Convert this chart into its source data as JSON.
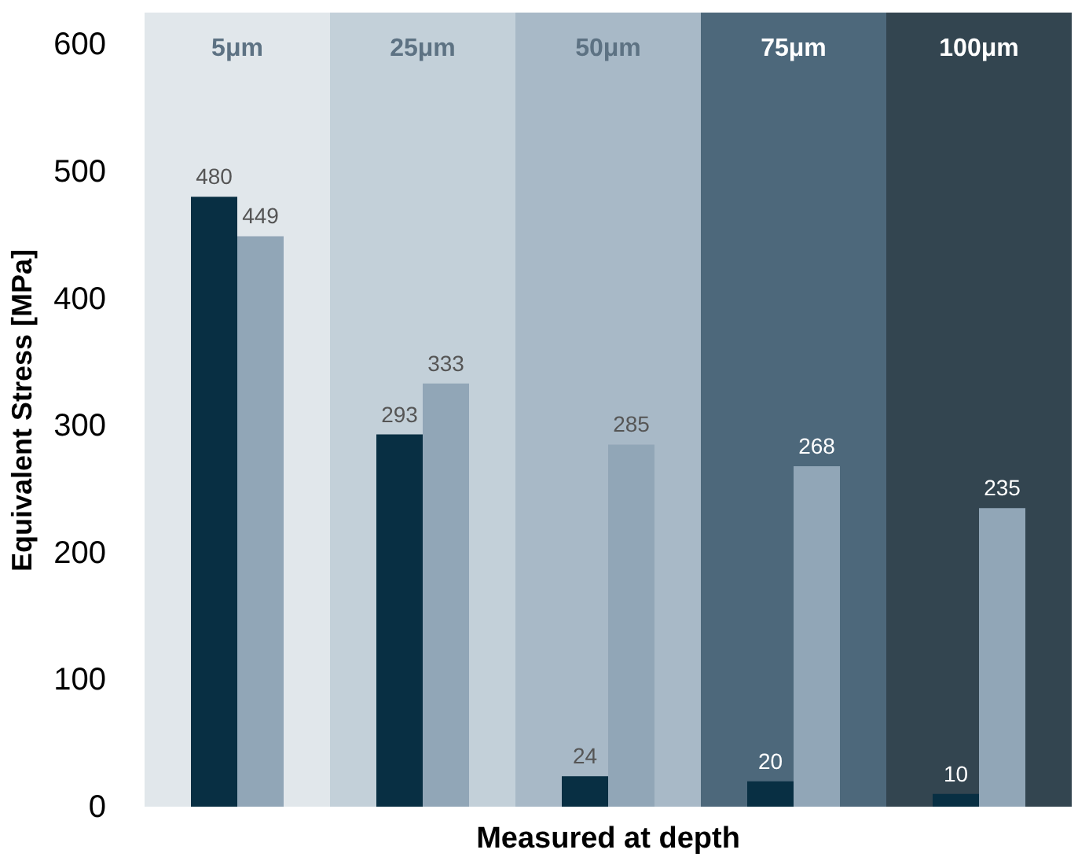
{
  "chart_data": {
    "type": "bar",
    "xlabel": "Measured at depth",
    "ylabel": "Equivalent Stress [MPa]",
    "categories": [
      "5μm",
      "25μm",
      "50μm",
      "75μm",
      "100μm"
    ],
    "series": [
      {
        "color": "#082f43",
        "values": [
          480,
          293,
          24,
          20,
          10
        ]
      },
      {
        "color": "#91a6b7",
        "values": [
          449,
          333,
          285,
          268,
          235
        ]
      }
    ],
    "bands": [
      {
        "axis": "x",
        "from": "5μm",
        "to": "5μm",
        "color": "#e1e7eb"
      },
      {
        "axis": "x",
        "from": "25μm",
        "to": "25μm",
        "color": "#c3d0d9"
      },
      {
        "axis": "x",
        "from": "50μm",
        "to": "50μm",
        "color": "#a8b9c7"
      },
      {
        "axis": "x",
        "from": "75μm",
        "to": "75μm",
        "color": "#4d687b"
      },
      {
        "axis": "x",
        "from": "100μm",
        "to": "100μm",
        "color": "#334550"
      }
    ],
    "ylim": [
      0,
      625
    ],
    "yticks": [
      0,
      100,
      200,
      300,
      400,
      500,
      600
    ],
    "data_labels": true,
    "grid": false
  }
}
